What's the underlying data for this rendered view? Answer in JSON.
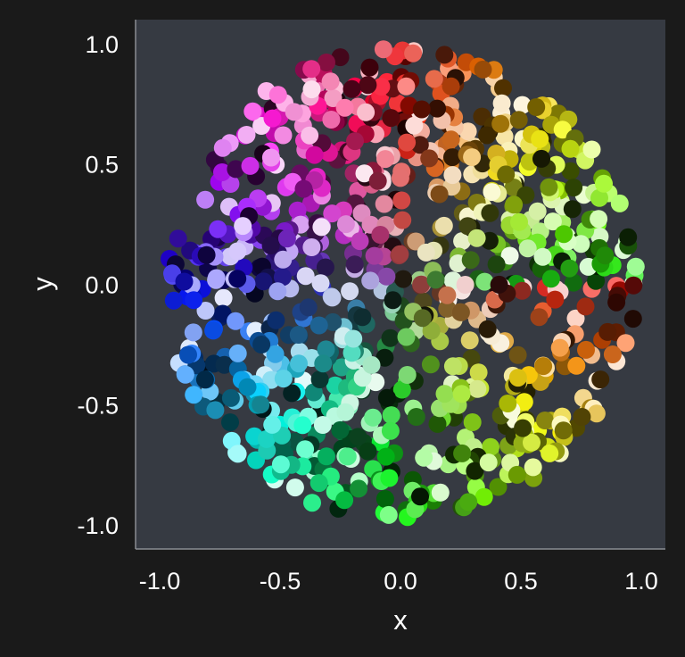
{
  "chart_data": {
    "type": "scatter",
    "title": "",
    "xlabel": "x",
    "ylabel": "y",
    "xlim": [
      -1.1,
      1.1
    ],
    "ylim": [
      -1.1,
      1.1
    ],
    "xticks": [
      -1.0,
      -0.5,
      0.0,
      0.5,
      1.0
    ],
    "xtick_labels": [
      "-1.0",
      "-0.5",
      "0.0",
      "0.5",
      "1.0"
    ],
    "yticks": [
      1.0,
      0.5,
      0.0,
      -0.5,
      -1.0
    ],
    "ytick_labels": [
      "1.0",
      "0.5",
      "0.0",
      "-0.5",
      "-1.0"
    ],
    "grid": false,
    "legend": "none",
    "colors": {
      "page_background": "#1a1a1a",
      "plot_background": "#363a42",
      "text": "#ffffff",
      "spine": "#8a8d92"
    },
    "encoding": "Point color is determined by position: hue from angle around the origin, brightness varies per point",
    "point_count": 900,
    "random_seed": 7,
    "points_sample": [
      {
        "x": 0.25,
        "y": 0.97
      },
      {
        "x": -0.12,
        "y": 0.98
      },
      {
        "x": 0.83,
        "y": 0.55
      },
      {
        "x": 0.97,
        "y": -0.11
      },
      {
        "x": -0.93,
        "y": 0.22
      },
      {
        "x": -0.9,
        "y": -0.3
      },
      {
        "x": -0.45,
        "y": -0.84
      },
      {
        "x": 0.02,
        "y": -0.96
      },
      {
        "x": 0.83,
        "y": -0.4
      },
      {
        "x": 0.55,
        "y": 0.85
      }
    ]
  }
}
